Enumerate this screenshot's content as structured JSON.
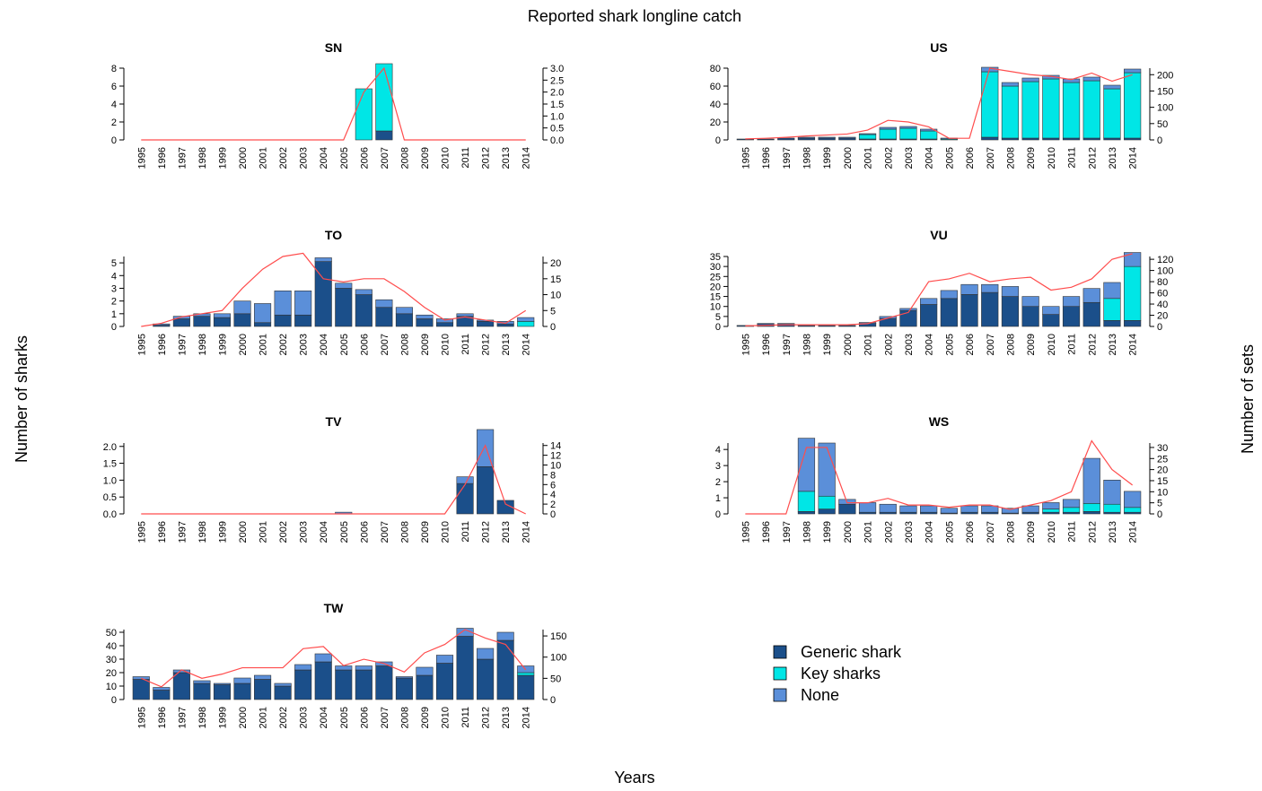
{
  "title": "Reported shark longline catch",
  "ylabel_left": "Number of sharks",
  "ylabel_right": "Number of sets",
  "xlabel": "Years",
  "colors": {
    "generic": "#1b4f8a",
    "key": "#00e6e6",
    "none": "#5b8fd9",
    "line": "#ff4d4d"
  },
  "legend": [
    {
      "label": "Generic shark",
      "color": "#1b4f8a"
    },
    {
      "label": "Key sharks",
      "color": "#00e6e6"
    },
    {
      "label": "None",
      "color": "#5b8fd9"
    }
  ],
  "chart_data": [
    {
      "type": "bar",
      "title": "SN",
      "categories": [
        "1995",
        "1996",
        "1997",
        "1998",
        "1999",
        "2000",
        "2001",
        "2002",
        "2003",
        "2004",
        "2005",
        "2006",
        "2007",
        "2008",
        "2009",
        "2010",
        "2011",
        "2012",
        "2013",
        "2014"
      ],
      "ylim": [
        0,
        8
      ],
      "yticks": [
        "0",
        "2",
        "4",
        "6",
        "8"
      ],
      "y2lim": [
        0,
        3
      ],
      "y2ticks": [
        "0.0",
        "0.5",
        "1.0",
        "1.5",
        "2.0",
        "2.5",
        "3.0"
      ],
      "series": [
        {
          "name": "Generic shark",
          "values": [
            0,
            0,
            0,
            0,
            0,
            0,
            0,
            0,
            0,
            0,
            0,
            0,
            1,
            0,
            0,
            0,
            0,
            0,
            0,
            0
          ]
        },
        {
          "name": "Key sharks",
          "values": [
            0,
            0,
            0,
            0,
            0,
            0,
            0,
            0,
            0,
            0,
            0,
            5.7,
            7.5,
            0,
            0,
            0,
            0,
            0,
            0,
            0
          ]
        },
        {
          "name": "None",
          "values": [
            0,
            0,
            0,
            0,
            0,
            0,
            0,
            0,
            0,
            0,
            0,
            0,
            0,
            0,
            0,
            0,
            0,
            0,
            0,
            0
          ]
        }
      ],
      "sets": [
        0,
        0,
        0,
        0,
        0,
        0,
        0,
        0,
        0,
        0,
        0,
        2,
        3,
        0,
        0,
        0,
        0,
        0,
        0,
        0
      ]
    },
    {
      "type": "bar",
      "title": "US",
      "categories": [
        "1995",
        "1996",
        "1997",
        "1998",
        "1999",
        "2000",
        "2001",
        "2002",
        "2003",
        "2004",
        "2005",
        "2006",
        "2007",
        "2008",
        "2009",
        "2010",
        "2011",
        "2012",
        "2013",
        "2014"
      ],
      "ylim": [
        0,
        80
      ],
      "yticks": [
        "0",
        "20",
        "40",
        "60",
        "80"
      ],
      "y2lim": [
        0,
        220
      ],
      "y2ticks": [
        "0",
        "50",
        "100",
        "150",
        "200"
      ],
      "series": [
        {
          "name": "Generic shark",
          "values": [
            1,
            1,
            2,
            2,
            2,
            2,
            1,
            1,
            1,
            1,
            0,
            0,
            3,
            2,
            2,
            2,
            2,
            2,
            2,
            2
          ]
        },
        {
          "name": "Key sharks",
          "values": [
            0,
            0,
            0,
            0,
            0,
            0,
            5,
            11,
            12,
            9,
            1,
            0,
            73,
            58,
            63,
            66,
            62,
            64,
            55,
            73
          ]
        },
        {
          "name": "None",
          "values": [
            0,
            0,
            0,
            1,
            1,
            1,
            1,
            2,
            2,
            2,
            1,
            0,
            5,
            4,
            4,
            4,
            4,
            4,
            4,
            4
          ]
        }
      ],
      "sets": [
        3,
        5,
        8,
        12,
        15,
        18,
        30,
        60,
        55,
        40,
        5,
        5,
        220,
        210,
        200,
        195,
        185,
        205,
        180,
        200
      ]
    },
    {
      "type": "bar",
      "title": "TO",
      "categories": [
        "1995",
        "1996",
        "1997",
        "1998",
        "1999",
        "2000",
        "2001",
        "2002",
        "2003",
        "2004",
        "2005",
        "2006",
        "2007",
        "2008",
        "2009",
        "2010",
        "2011",
        "2012",
        "2013",
        "2014"
      ],
      "ylim": [
        0,
        5.5
      ],
      "yticks": [
        "0",
        "1",
        "2",
        "3",
        "4",
        "5"
      ],
      "y2lim": [
        0,
        22
      ],
      "y2ticks": [
        "0",
        "5",
        "10",
        "15",
        "20"
      ],
      "series": [
        {
          "name": "Generic shark",
          "values": [
            0,
            0.1,
            0.6,
            0.8,
            0.7,
            1.0,
            0.3,
            0.9,
            0.9,
            5.1,
            3.0,
            2.5,
            1.5,
            1.0,
            0.6,
            0.3,
            0.8,
            0.4,
            0.2,
            0
          ]
        },
        {
          "name": "Key sharks",
          "values": [
            0,
            0,
            0,
            0,
            0,
            0,
            0,
            0,
            0,
            0,
            0,
            0,
            0,
            0,
            0,
            0,
            0,
            0,
            0,
            0.4
          ]
        },
        {
          "name": "None",
          "values": [
            0,
            0.1,
            0.2,
            0.2,
            0.3,
            1.0,
            1.5,
            1.9,
            1.9,
            0.3,
            0.4,
            0.4,
            0.6,
            0.5,
            0.3,
            0.3,
            0.2,
            0.1,
            0.2,
            0.3
          ]
        }
      ],
      "sets": [
        0,
        1,
        3,
        4,
        5,
        12,
        18,
        22,
        23,
        15,
        14,
        15,
        15,
        11,
        6,
        2,
        3,
        2,
        1,
        5
      ]
    },
    {
      "type": "bar",
      "title": "VU",
      "categories": [
        "1995",
        "1996",
        "1997",
        "1998",
        "1999",
        "2000",
        "2001",
        "2002",
        "2003",
        "2004",
        "2005",
        "2006",
        "2007",
        "2008",
        "2009",
        "2010",
        "2011",
        "2012",
        "2013",
        "2014"
      ],
      "ylim": [
        0,
        35
      ],
      "yticks": [
        "0",
        "5",
        "10",
        "15",
        "20",
        "25",
        "30",
        "35"
      ],
      "y2lim": [
        0,
        125
      ],
      "y2ticks": [
        "0",
        "20",
        "40",
        "60",
        "80",
        "100",
        "120"
      ],
      "series": [
        {
          "name": "Generic shark",
          "values": [
            0.5,
            1.5,
            1.5,
            0.5,
            0.5,
            0.5,
            1.5,
            4,
            8,
            11,
            14,
            16,
            17,
            15,
            10,
            6,
            10,
            12,
            3,
            3
          ]
        },
        {
          "name": "Key sharks",
          "values": [
            0,
            0,
            0,
            0,
            0,
            0,
            0,
            0,
            0,
            0,
            0,
            0,
            0,
            0,
            0,
            0,
            0,
            0,
            11,
            27
          ]
        },
        {
          "name": "None",
          "values": [
            0,
            0,
            0,
            0,
            0,
            0,
            0.5,
            1,
            1,
            3,
            4,
            5,
            4,
            5,
            5,
            4,
            5,
            7,
            8,
            7
          ]
        }
      ],
      "sets": [
        1,
        2,
        3,
        3,
        3,
        3,
        5,
        15,
        25,
        80,
        85,
        95,
        80,
        85,
        88,
        65,
        70,
        85,
        120,
        130
      ]
    },
    {
      "type": "bar",
      "title": "TV",
      "categories": [
        "1995",
        "1996",
        "1997",
        "1998",
        "1999",
        "2000",
        "2001",
        "2002",
        "2003",
        "2004",
        "2005",
        "2006",
        "2007",
        "2008",
        "2009",
        "2010",
        "2011",
        "2012",
        "2013",
        "2014"
      ],
      "ylim": [
        0,
        2.1
      ],
      "yticks": [
        "0.0",
        "0.5",
        "1.0",
        "1.5",
        "2.0"
      ],
      "y2lim": [
        0,
        14.5
      ],
      "y2ticks": [
        "0",
        "2",
        "4",
        "6",
        "8",
        "10",
        "12",
        "14"
      ],
      "series": [
        {
          "name": "Generic shark",
          "values": [
            0,
            0,
            0,
            0,
            0,
            0,
            0,
            0,
            0,
            0,
            0,
            0,
            0,
            0,
            0,
            0,
            0.9,
            1.4,
            0.4,
            0
          ]
        },
        {
          "name": "Key sharks",
          "values": [
            0,
            0,
            0,
            0,
            0,
            0,
            0,
            0,
            0,
            0,
            0,
            0,
            0,
            0,
            0,
            0,
            0,
            0,
            0,
            0
          ]
        },
        {
          "name": "None",
          "values": [
            0,
            0,
            0,
            0,
            0,
            0,
            0,
            0,
            0,
            0,
            0.05,
            0,
            0,
            0,
            0,
            0,
            0.2,
            1.1,
            0,
            0
          ]
        }
      ],
      "sets": [
        0,
        0,
        0,
        0,
        0,
        0,
        0,
        0,
        0,
        0,
        0,
        0,
        0,
        0,
        0,
        0,
        6,
        14,
        2,
        0
      ]
    },
    {
      "type": "bar",
      "title": "WS",
      "categories": [
        "1995",
        "1996",
        "1997",
        "1998",
        "1999",
        "2000",
        "2001",
        "2002",
        "2003",
        "2004",
        "2005",
        "2006",
        "2007",
        "2008",
        "2009",
        "2010",
        "2011",
        "2012",
        "2013",
        "2014"
      ],
      "ylim": [
        0,
        4.4
      ],
      "yticks": [
        "0",
        "1",
        "2",
        "3",
        "4"
      ],
      "y2lim": [
        0,
        32
      ],
      "y2ticks": [
        "0",
        "5",
        "10",
        "15",
        "20",
        "25",
        "30"
      ],
      "series": [
        {
          "name": "Generic shark",
          "values": [
            0,
            0,
            0,
            0.15,
            0.3,
            0.6,
            0.1,
            0.1,
            0.1,
            0.1,
            0.05,
            0.1,
            0.1,
            0.05,
            0.1,
            0.1,
            0.1,
            0.15,
            0.1,
            0.1
          ]
        },
        {
          "name": "Key sharks",
          "values": [
            0,
            0,
            0,
            1.25,
            0.8,
            0,
            0,
            0,
            0,
            0,
            0,
            0,
            0,
            0,
            0,
            0.2,
            0.3,
            0.5,
            0.5,
            0.3
          ]
        },
        {
          "name": "None",
          "values": [
            0,
            0,
            0,
            3.3,
            3.3,
            0.3,
            0.6,
            0.5,
            0.4,
            0.4,
            0.3,
            0.4,
            0.4,
            0.3,
            0.4,
            0.4,
            0.5,
            2.8,
            1.5,
            1.0
          ]
        }
      ],
      "sets": [
        0,
        0,
        0,
        30,
        30,
        5,
        5,
        7,
        4,
        4,
        3,
        4,
        4,
        2,
        4,
        6,
        10,
        33,
        20,
        13
      ]
    },
    {
      "type": "bar",
      "title": "TW",
      "categories": [
        "1995",
        "1996",
        "1997",
        "1998",
        "1999",
        "2000",
        "2001",
        "2002",
        "2003",
        "2004",
        "2005",
        "2006",
        "2007",
        "2008",
        "2009",
        "2010",
        "2011",
        "2012",
        "2013",
        "2014"
      ],
      "ylim": [
        0,
        52
      ],
      "yticks": [
        "0",
        "10",
        "20",
        "30",
        "40",
        "50"
      ],
      "y2lim": [
        0,
        165
      ],
      "y2ticks": [
        "0",
        "50",
        "100",
        "150"
      ],
      "series": [
        {
          "name": "Generic shark",
          "values": [
            15,
            7,
            20,
            12,
            11,
            12,
            15,
            10,
            22,
            28,
            22,
            22,
            25,
            16,
            18,
            27,
            47,
            30,
            44,
            18
          ]
        },
        {
          "name": "Key sharks",
          "values": [
            0,
            0,
            0,
            0,
            0,
            0,
            0,
            0,
            0,
            0,
            0,
            0,
            0,
            0,
            0,
            0,
            0,
            0,
            0,
            2
          ]
        },
        {
          "name": "None",
          "values": [
            2,
            2,
            2,
            2,
            1,
            4,
            3,
            2,
            4,
            6,
            3,
            3,
            3,
            1,
            6,
            6,
            6,
            8,
            6,
            5
          ]
        }
      ],
      "sets": [
        50,
        30,
        70,
        50,
        60,
        75,
        75,
        75,
        120,
        125,
        80,
        95,
        85,
        65,
        110,
        130,
        165,
        145,
        130,
        70
      ]
    }
  ]
}
